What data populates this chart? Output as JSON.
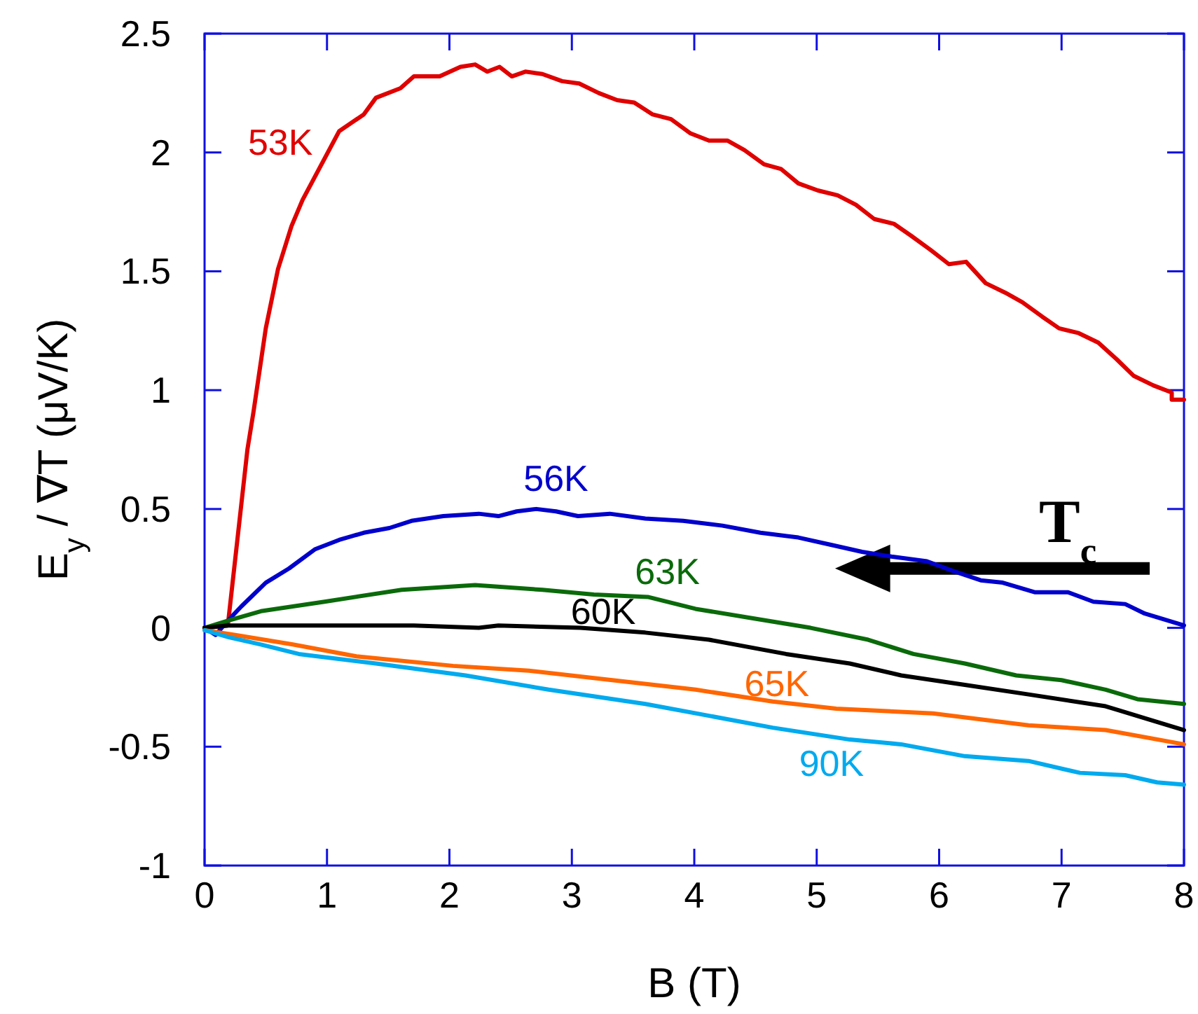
{
  "chart_data": {
    "type": "line",
    "xlabel": "B (T)",
    "ylabel": "E$_{y}$ / ∇T (μV/K)",
    "xlim": [
      0,
      8
    ],
    "ylim": [
      -1,
      2.5
    ],
    "xticks": [
      0,
      1,
      2,
      3,
      4,
      5,
      6,
      7,
      8
    ],
    "yticks": [
      -1,
      -0.5,
      0,
      0.5,
      1,
      1.5,
      2,
      2.5
    ],
    "grid": false,
    "marker": "none",
    "line_style": "solid",
    "annotations": [
      "T$_{c}$"
    ],
    "series": [
      {
        "name": "53K",
        "color": "#e00000",
        "x": [
          0,
          0.19,
          0.35,
          0.4,
          0.5,
          0.6,
          0.71,
          0.8,
          1.1,
          1.3,
          1.4,
          1.6,
          1.71,
          1.92,
          2.09,
          2.21,
          2.31,
          2.41,
          2.51,
          2.62,
          2.76,
          2.92,
          3.06,
          3.22,
          3.37,
          3.51,
          3.66,
          3.81,
          3.97,
          4.12,
          4.27,
          4.41,
          4.57,
          4.71,
          4.85,
          5.01,
          5.17,
          5.32,
          5.47,
          5.63,
          5.77,
          5.93,
          6.08,
          6.22,
          6.38,
          6.54,
          6.68,
          6.84,
          6.98,
          7.14,
          7.3,
          7.45,
          7.59,
          7.75,
          7.9,
          7.9,
          8.0
        ],
        "values": [
          0,
          0.01,
          0.75,
          0.91,
          1.26,
          1.51,
          1.69,
          1.8,
          2.09,
          2.16,
          2.23,
          2.27,
          2.32,
          2.32,
          2.36,
          2.37,
          2.34,
          2.36,
          2.32,
          2.34,
          2.33,
          2.3,
          2.29,
          2.25,
          2.22,
          2.21,
          2.16,
          2.14,
          2.08,
          2.05,
          2.05,
          2.01,
          1.95,
          1.93,
          1.87,
          1.84,
          1.82,
          1.78,
          1.72,
          1.7,
          1.65,
          1.59,
          1.53,
          1.54,
          1.45,
          1.41,
          1.37,
          1.31,
          1.26,
          1.24,
          1.2,
          1.13,
          1.06,
          1.02,
          0.99,
          0.96,
          0.96
        ]
      },
      {
        "name": "56K",
        "color": "#0000cc",
        "x": [
          0,
          0.09,
          0.19,
          0.3,
          0.5,
          0.69,
          0.9,
          1.1,
          1.3,
          1.51,
          1.69,
          1.95,
          2.24,
          2.4,
          2.55,
          2.71,
          2.87,
          3.05,
          3.31,
          3.6,
          3.91,
          4.23,
          4.54,
          4.85,
          5.11,
          5.37,
          5.61,
          5.9,
          6.11,
          6.34,
          6.52,
          6.78,
          7.05,
          7.26,
          7.52,
          7.68,
          8.0
        ],
        "values": [
          0,
          -0.03,
          0.03,
          0.09,
          0.19,
          0.25,
          0.33,
          0.37,
          0.4,
          0.42,
          0.45,
          0.47,
          0.48,
          0.47,
          0.49,
          0.5,
          0.49,
          0.47,
          0.48,
          0.46,
          0.45,
          0.43,
          0.4,
          0.38,
          0.35,
          0.32,
          0.3,
          0.28,
          0.24,
          0.2,
          0.19,
          0.15,
          0.15,
          0.11,
          0.1,
          0.06,
          0.01
        ]
      },
      {
        "name": "63K",
        "color": "#0a6a0a",
        "x": [
          0,
          0.19,
          0.46,
          0.98,
          1.61,
          2.21,
          2.76,
          3.18,
          3.62,
          4.01,
          4.48,
          4.95,
          5.42,
          5.79,
          6.21,
          6.63,
          7.0,
          7.36,
          7.62,
          8.0
        ],
        "values": [
          0,
          0.03,
          0.07,
          0.11,
          0.16,
          0.18,
          0.16,
          0.14,
          0.13,
          0.08,
          0.04,
          0.0,
          -0.05,
          -0.11,
          -0.15,
          -0.2,
          -0.22,
          -0.26,
          -0.3,
          -0.32
        ]
      },
      {
        "name": "60K",
        "color": "#000000",
        "x": [
          0,
          0.19,
          0.98,
          1.71,
          2.24,
          2.4,
          3.07,
          3.6,
          4.12,
          4.75,
          5.27,
          5.69,
          6.21,
          6.73,
          7.36,
          7.68,
          8.0
        ],
        "values": [
          0,
          0.01,
          0.01,
          0.01,
          0.0,
          0.01,
          0.0,
          -0.02,
          -0.05,
          -0.11,
          -0.15,
          -0.2,
          -0.24,
          -0.28,
          -0.33,
          -0.38,
          -0.43
        ]
      },
      {
        "name": "65K",
        "color": "#ff6600",
        "x": [
          0,
          0.25,
          0.72,
          1.24,
          2.03,
          2.65,
          3.33,
          4.01,
          4.64,
          5.16,
          5.95,
          6.73,
          7.36,
          8.0
        ],
        "values": [
          -0.01,
          -0.03,
          -0.07,
          -0.12,
          -0.16,
          -0.18,
          -0.22,
          -0.26,
          -0.31,
          -0.34,
          -0.36,
          -0.41,
          -0.43,
          -0.49
        ]
      },
      {
        "name": "90K",
        "color": "#00aaee",
        "x": [
          0,
          0.2,
          0.46,
          0.77,
          1.4,
          2.13,
          2.81,
          3.6,
          4.12,
          4.64,
          5.27,
          5.69,
          6.21,
          6.73,
          7.15,
          7.52,
          7.78,
          8.0
        ],
        "values": [
          -0.01,
          -0.04,
          -0.07,
          -0.11,
          -0.15,
          -0.2,
          -0.26,
          -0.32,
          -0.37,
          -0.42,
          -0.47,
          -0.49,
          -0.54,
          -0.56,
          -0.61,
          -0.62,
          -0.65,
          -0.66
        ]
      }
    ]
  }
}
